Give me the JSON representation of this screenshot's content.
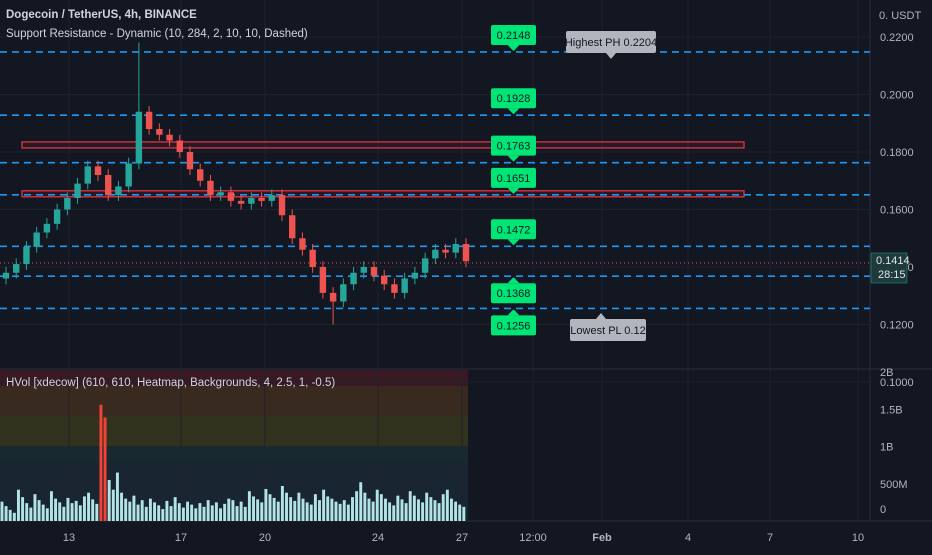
{
  "header": {
    "title": "Dogecoin / TetherUS, 4h, BINANCE",
    "indicator": "Support Resistance - Dynamic (10, 284, 2, 10, 10, Dashed)",
    "volume_indicator": "HVol [xdecow] (610, 610, Heatmap, Backgrounds, 4, 2.5, 1, -0.5)"
  },
  "axis": {
    "currency": "0. USDT",
    "last_price": "0.1414",
    "countdown": "28:15"
  },
  "colors": {
    "background": "#131722",
    "up": "#26a69a",
    "down": "#ef5350",
    "level_line": "#2196f3",
    "level_badge": "#00e676",
    "zone": "#f23645",
    "volume_bar": "#b2e3e6",
    "volume_spike": "#f44336"
  },
  "chart_data": [
    {
      "type": "candlestick",
      "title": "Dogecoin / TetherUS, 4h, BINANCE",
      "x_ticks": [
        "13",
        "17",
        "20",
        "24",
        "27",
        "12:00",
        "Feb",
        "4",
        "7",
        "10"
      ],
      "y_ticks": [
        "0.2200",
        "0.2000",
        "0.1800",
        "0.1600",
        "0.1400",
        "0.1200",
        "0.1000"
      ],
      "ylim": [
        0.1,
        0.228
      ],
      "close_path": [
        0.138,
        0.141,
        0.147,
        0.152,
        0.155,
        0.16,
        0.164,
        0.169,
        0.175,
        0.172,
        0.165,
        0.168,
        0.176,
        0.194,
        0.188,
        0.186,
        0.184,
        0.18,
        0.174,
        0.17,
        0.165,
        0.166,
        0.163,
        0.162,
        0.164,
        0.163,
        0.165,
        0.158,
        0.15,
        0.146,
        0.14,
        0.131,
        0.128,
        0.134,
        0.138,
        0.14,
        0.137,
        0.134,
        0.131,
        0.136,
        0.138,
        0.143,
        0.146,
        0.145,
        0.148,
        0.142
      ],
      "support_resistance_levels": [
        "0.2148",
        "0.1928",
        "0.1763",
        "0.1651",
        "0.1472",
        "0.1368",
        "0.1256"
      ],
      "resistance_zones": [
        [
          0.1818,
          0.1835
        ],
        [
          0.1645,
          0.1665
        ]
      ],
      "annotations": [
        "Highest PH 0.2204",
        "Lowest PL 0.12"
      ]
    },
    {
      "type": "bar",
      "title": "HVol [xdecow] (610, 610, Heatmap, Backgrounds, 4, 2.5, 1, -0.5)",
      "y_ticks": [
        "2B",
        "1.5B",
        "1B",
        "500M",
        "0"
      ],
      "ylim": [
        0,
        2000000000
      ],
      "values": [
        260,
        200,
        150,
        110,
        420,
        320,
        240,
        180,
        360,
        280,
        220,
        170,
        400,
        300,
        250,
        190,
        310,
        240,
        270,
        210,
        330,
        380,
        290,
        230,
        1560,
        1390,
        550,
        420,
        650,
        380,
        300,
        260,
        340,
        220,
        280,
        190,
        300,
        250,
        210,
        160,
        270,
        200,
        320,
        240,
        180,
        260,
        220,
        170,
        240,
        190,
        280,
        210,
        250,
        170,
        230,
        300,
        280,
        200,
        260,
        190,
        400,
        330,
        290,
        250,
        430,
        360,
        310,
        260,
        470,
        380,
        320,
        270,
        380,
        300,
        250,
        220,
        360,
        280,
        420,
        330,
        300,
        260,
        230,
        280,
        220,
        320,
        400,
        520,
        380,
        300,
        260,
        420,
        360,
        300,
        250,
        210,
        340,
        290,
        240,
        400,
        340,
        290,
        250,
        380,
        320,
        280,
        240,
        360,
        420,
        300,
        260,
        220,
        190
      ]
    }
  ]
}
